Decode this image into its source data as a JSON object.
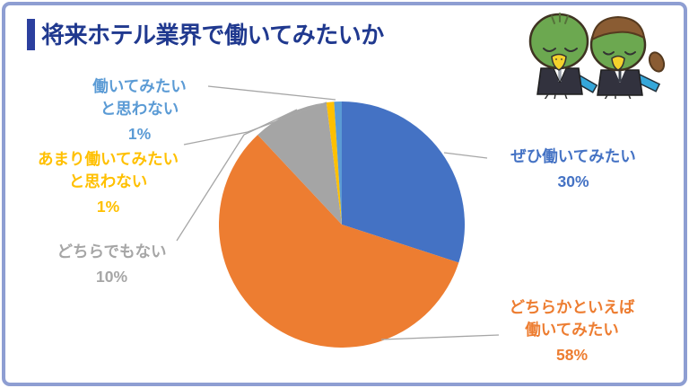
{
  "page": {
    "background_color": "#FFFFFF",
    "frame_border_color": "#8E9ED2"
  },
  "header": {
    "title": "将来ホテル業界で働いてみたいか",
    "title_color": "#20398F",
    "accent_bar_color": "#2B3F9E"
  },
  "mascots": {
    "icon": "kappa-mascots-bowing-icon",
    "body_green": "#6CA850",
    "hair_brown": "#8A5C33",
    "beak_yellow": "#F4D22C",
    "suit_dark": "#32323E",
    "item_blue": "#35A7DA"
  },
  "chart_data": {
    "type": "pie",
    "title": "将来ホテル業界で働いてみたいか",
    "start_angle_deg": 0,
    "direction": "clockwise",
    "legend": "none",
    "leader_line_color": "#A6A6A6",
    "slices": [
      {
        "id": "zehi",
        "lines": [
          "ぜひ働いてみたい"
        ],
        "pct_label": "30%",
        "value_pct": 30,
        "color": "#4472C4",
        "label_color": "#4472C4"
      },
      {
        "id": "dochiraka",
        "lines": [
          "どちらかといえば",
          "働いてみたい"
        ],
        "pct_label": "58%",
        "value_pct": 58,
        "color": "#ED7D31",
        "label_color": "#ED7D31"
      },
      {
        "id": "dochirademo",
        "lines": [
          "どちらでもない"
        ],
        "pct_label": "10%",
        "value_pct": 10,
        "color": "#A5A5A5",
        "label_color": "#A6A6A6"
      },
      {
        "id": "amari",
        "lines": [
          "あまり働いてみたい",
          "と思わない"
        ],
        "pct_label": "1%",
        "value_pct": 1,
        "color": "#FFC000",
        "label_color": "#FFC000"
      },
      {
        "id": "omowanai",
        "lines": [
          "働いてみたい",
          "と思わない"
        ],
        "pct_label": "1%",
        "value_pct": 1,
        "color": "#5B9BD5",
        "label_color": "#5B9BD5"
      }
    ]
  }
}
